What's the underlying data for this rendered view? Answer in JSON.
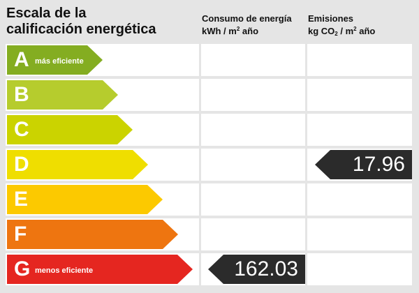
{
  "title": {
    "line1": "Escala de la",
    "line2": "calificación energética"
  },
  "columns": {
    "consumo": {
      "line1": "Consumo de energía",
      "line2_pre": "kWh / m",
      "line2_sup": "2",
      "line2_post": " año"
    },
    "emisiones": {
      "line1": "Emisiones",
      "line2_pre": "kg CO",
      "line2_sub": "2",
      "line2_mid": " / m",
      "line2_sup": "2",
      "line2_post": " año"
    }
  },
  "ratings": [
    {
      "letter": "A",
      "note": "más eficiente",
      "color": "#84ad21"
    },
    {
      "letter": "B",
      "note": "",
      "color": "#b6cc2d"
    },
    {
      "letter": "C",
      "note": "",
      "color": "#cbd300"
    },
    {
      "letter": "D",
      "note": "",
      "color": "#efde00"
    },
    {
      "letter": "E",
      "note": "",
      "color": "#fcc900"
    },
    {
      "letter": "F",
      "note": "",
      "color": "#ee7510"
    },
    {
      "letter": "G",
      "note": "menos eficiente",
      "color": "#e52620"
    }
  ],
  "results": {
    "consumo": {
      "value": "162.03",
      "rating": "G"
    },
    "emisiones": {
      "value": "17.96",
      "rating": "D"
    },
    "marker_color": "#2b2b2b"
  }
}
